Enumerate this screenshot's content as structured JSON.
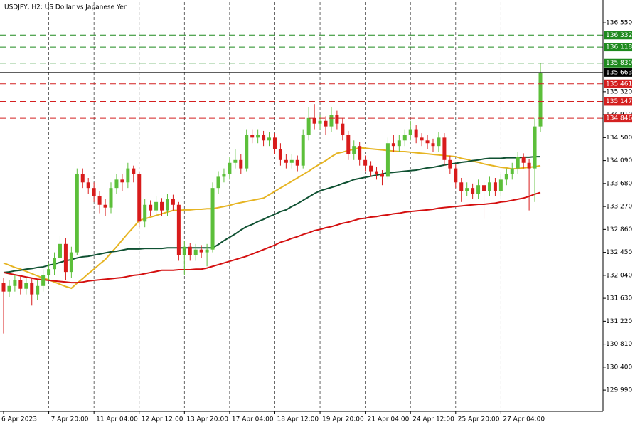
{
  "chart_data": {
    "type": "candlestick",
    "title": "USDJPY, H2:  US Dollar vs Japanese Yen",
    "categories": [
      "6 Apr 2023",
      null,
      null,
      null,
      null,
      null,
      null,
      null,
      "7 Apr 20:00",
      null,
      null,
      null,
      null,
      null,
      null,
      null,
      "11 Apr 04:00",
      null,
      null,
      null,
      null,
      null,
      null,
      null,
      "12 Apr 12:00",
      null,
      null,
      null,
      null,
      null,
      null,
      null,
      "13 Apr 20:00",
      null,
      null,
      null,
      null,
      null,
      null,
      null,
      "17 Apr 04:00",
      null,
      null,
      null,
      null,
      null,
      null,
      null,
      "18 Apr 12:00",
      null,
      null,
      null,
      null,
      null,
      null,
      null,
      "19 Apr 20:00",
      null,
      null,
      null,
      null,
      null,
      null,
      null,
      "21 Apr 04:00",
      null,
      null,
      null,
      null,
      null,
      null,
      null,
      "24 Apr 12:00",
      null,
      null,
      null,
      null,
      null,
      null,
      null,
      "25 Apr 20:00",
      null,
      null,
      null,
      null,
      null,
      null,
      null,
      "27 Apr 04:00",
      null,
      null,
      null,
      null,
      null,
      null,
      null
    ],
    "open": [
      131.9,
      131.75,
      131.85,
      131.95,
      131.8,
      131.9,
      131.7,
      131.85,
      132.05,
      132.15,
      132.35,
      132.6,
      132.1,
      132.45,
      133.85,
      133.7,
      133.6,
      133.45,
      133.3,
      133.25,
      133.6,
      133.75,
      133.7,
      133.95,
      133.85,
      133.0,
      133.3,
      133.2,
      133.35,
      133.2,
      133.4,
      133.3,
      132.4,
      132.55,
      132.4,
      132.5,
      132.45,
      132.5,
      133.6,
      133.8,
      133.85,
      134.05,
      134.1,
      133.95,
      134.55,
      134.5,
      134.55,
      134.45,
      134.5,
      134.3,
      134.1,
      134.05,
      134.1,
      134.0,
      134.55,
      134.85,
      134.75,
      134.8,
      134.7,
      134.9,
      134.75,
      134.55,
      134.2,
      134.35,
      134.1,
      134.0,
      133.9,
      133.85,
      133.8,
      134.4,
      134.35,
      134.45,
      134.55,
      134.65,
      134.5,
      134.45,
      134.4,
      134.35,
      134.5,
      134.1,
      133.95,
      133.7,
      133.55,
      133.6,
      133.5,
      133.65,
      133.55,
      133.7,
      133.55,
      133.75,
      133.85,
      133.95,
      134.15,
      134.05,
      133.95,
      134.7
    ],
    "high": [
      132.0,
      131.95,
      132.05,
      132.05,
      132.0,
      131.98,
      131.95,
      132.15,
      132.25,
      132.45,
      132.75,
      132.7,
      132.55,
      133.95,
      133.95,
      133.78,
      133.7,
      133.55,
      133.4,
      133.7,
      133.85,
      133.85,
      134.05,
      134.0,
      133.9,
      133.4,
      133.38,
      133.45,
      133.42,
      133.5,
      133.48,
      133.35,
      132.65,
      132.62,
      132.6,
      132.58,
      132.6,
      133.7,
      133.9,
      133.95,
      134.15,
      134.3,
      134.2,
      134.65,
      134.65,
      134.65,
      134.62,
      134.6,
      134.58,
      134.4,
      134.2,
      134.2,
      134.18,
      134.65,
      135.05,
      135.1,
      134.9,
      134.88,
      135.05,
      134.98,
      134.85,
      134.62,
      134.45,
      134.42,
      134.18,
      134.08,
      133.98,
      133.92,
      134.5,
      134.55,
      134.55,
      134.65,
      134.8,
      134.72,
      134.58,
      134.55,
      134.48,
      134.6,
      134.58,
      134.18,
      134.03,
      133.78,
      133.7,
      133.68,
      133.75,
      133.72,
      133.8,
      133.78,
      133.85,
      133.95,
      134.05,
      134.25,
      134.22,
      134.12,
      134.85,
      135.83
    ],
    "low": [
      131.0,
      131.65,
      131.75,
      131.7,
      131.7,
      131.5,
      131.6,
      131.75,
      131.95,
      132.05,
      132.25,
      131.95,
      132.0,
      132.4,
      133.6,
      133.5,
      133.35,
      133.15,
      133.1,
      133.15,
      133.5,
      133.55,
      133.6,
      133.7,
      132.9,
      132.9,
      133.1,
      133.1,
      133.1,
      133.1,
      133.2,
      132.3,
      132.05,
      132.3,
      132.3,
      132.35,
      132.2,
      132.45,
      133.5,
      133.7,
      133.75,
      133.95,
      133.85,
      133.9,
      134.4,
      134.4,
      134.35,
      134.35,
      134.2,
      134.0,
      133.95,
      133.95,
      133.9,
      133.95,
      134.45,
      134.65,
      134.65,
      134.55,
      134.6,
      134.65,
      134.45,
      134.1,
      134.1,
      134.0,
      133.9,
      133.8,
      133.75,
      133.65,
      133.75,
      134.25,
      134.25,
      134.35,
      134.45,
      134.4,
      134.35,
      134.3,
      134.25,
      134.25,
      134.0,
      133.85,
      133.6,
      133.35,
      133.45,
      133.4,
      133.4,
      133.05,
      133.45,
      133.45,
      133.45,
      133.65,
      133.75,
      133.85,
      133.95,
      133.2,
      133.35,
      134.6
    ],
    "close": [
      131.75,
      131.85,
      131.95,
      131.8,
      131.9,
      131.7,
      131.85,
      132.05,
      132.15,
      132.35,
      132.6,
      132.1,
      132.45,
      133.85,
      133.7,
      133.6,
      133.45,
      133.3,
      133.25,
      133.6,
      133.75,
      133.7,
      133.95,
      133.85,
      133.0,
      133.3,
      133.2,
      133.35,
      133.2,
      133.4,
      133.3,
      132.4,
      132.55,
      132.4,
      132.5,
      132.45,
      132.5,
      133.6,
      133.8,
      133.85,
      134.05,
      134.1,
      133.95,
      134.55,
      134.5,
      134.55,
      134.45,
      134.5,
      134.3,
      134.1,
      134.05,
      134.1,
      134.0,
      134.55,
      134.85,
      134.75,
      134.8,
      134.7,
      134.9,
      134.75,
      134.55,
      134.2,
      134.35,
      134.1,
      134.0,
      133.9,
      133.85,
      133.8,
      134.4,
      134.35,
      134.45,
      134.55,
      134.65,
      134.5,
      134.45,
      134.4,
      134.35,
      134.5,
      134.1,
      133.95,
      133.7,
      133.55,
      133.6,
      133.5,
      133.65,
      133.55,
      133.7,
      133.55,
      133.75,
      133.85,
      133.95,
      134.15,
      134.05,
      133.95,
      134.7,
      135.663
    ],
    "up_color": "#5cbf3a",
    "down_color": "#d81b1b",
    "moving_averages": [
      {
        "color": "#e6b422",
        "values": [
          132.26,
          132.22,
          132.18,
          132.15,
          132.11,
          132.07,
          132.03,
          131.99,
          131.96,
          131.92,
          131.88,
          131.84,
          131.81,
          131.9,
          131.98,
          132.07,
          132.15,
          132.24,
          132.32,
          132.44,
          132.55,
          132.67,
          132.79,
          132.9,
          133.02,
          133.05,
          133.08,
          133.11,
          133.14,
          133.17,
          133.2,
          133.2,
          133.21,
          133.21,
          133.22,
          133.22,
          133.23,
          133.23,
          133.25,
          133.27,
          133.29,
          133.32,
          133.34,
          133.36,
          133.38,
          133.4,
          133.42,
          133.48,
          133.54,
          133.6,
          133.66,
          133.72,
          133.78,
          133.84,
          133.9,
          133.97,
          134.03,
          134.09,
          134.16,
          134.22,
          134.24,
          134.27,
          134.29,
          134.32,
          134.31,
          134.3,
          134.29,
          134.28,
          134.27,
          134.26,
          134.25,
          134.25,
          134.24,
          134.23,
          134.22,
          134.21,
          134.2,
          134.19,
          134.18,
          134.17,
          134.16,
          134.13,
          134.11,
          134.08,
          134.06,
          134.03,
          134.01,
          133.99,
          133.97,
          133.96,
          133.94,
          133.95,
          133.96,
          133.97,
          133.98,
          134.0
        ]
      },
      {
        "color": "#0f5132",
        "values": [
          132.09,
          132.1,
          132.12,
          132.13,
          132.15,
          132.16,
          132.18,
          132.19,
          132.22,
          132.24,
          132.27,
          132.3,
          132.32,
          132.35,
          132.37,
          132.38,
          132.4,
          132.42,
          132.44,
          132.46,
          132.47,
          132.49,
          132.51,
          132.51,
          132.51,
          132.52,
          132.52,
          132.52,
          132.52,
          132.53,
          132.53,
          132.53,
          132.53,
          132.53,
          132.53,
          132.53,
          132.53,
          132.53,
          132.59,
          132.66,
          132.72,
          132.78,
          132.85,
          132.91,
          132.95,
          133.0,
          133.04,
          133.09,
          133.13,
          133.18,
          133.21,
          133.27,
          133.32,
          133.38,
          133.44,
          133.5,
          133.55,
          133.58,
          133.61,
          133.64,
          133.68,
          133.71,
          133.75,
          133.77,
          133.79,
          133.81,
          133.83,
          133.85,
          133.87,
          133.88,
          133.89,
          133.9,
          133.91,
          133.92,
          133.94,
          133.96,
          133.97,
          133.99,
          134.01,
          134.03,
          134.04,
          134.06,
          134.07,
          134.09,
          134.1,
          134.12,
          134.13,
          134.13,
          134.13,
          134.14,
          134.14,
          134.14,
          134.15,
          134.15,
          134.16,
          134.16
        ]
      },
      {
        "color": "#d40f0f",
        "values": [
          132.09,
          132.07,
          132.05,
          132.03,
          132.01,
          131.99,
          131.97,
          131.96,
          131.95,
          131.94,
          131.93,
          131.92,
          131.91,
          131.91,
          131.92,
          131.94,
          131.95,
          131.96,
          131.97,
          131.98,
          131.99,
          132.0,
          132.02,
          132.04,
          132.05,
          132.07,
          132.09,
          132.11,
          132.13,
          132.13,
          132.13,
          132.14,
          132.14,
          132.14,
          132.15,
          132.15,
          132.17,
          132.2,
          132.23,
          132.26,
          132.29,
          132.32,
          132.35,
          132.38,
          132.42,
          132.46,
          132.5,
          132.54,
          132.58,
          132.63,
          132.66,
          132.7,
          132.73,
          132.77,
          132.8,
          132.84,
          132.86,
          132.89,
          132.91,
          132.94,
          132.97,
          132.99,
          133.02,
          133.05,
          133.06,
          133.08,
          133.09,
          133.11,
          133.12,
          133.14,
          133.15,
          133.17,
          133.18,
          133.19,
          133.2,
          133.21,
          133.22,
          133.24,
          133.25,
          133.26,
          133.27,
          133.28,
          133.29,
          133.3,
          133.31,
          133.31,
          133.32,
          133.33,
          133.35,
          133.36,
          133.38,
          133.4,
          133.42,
          133.45,
          133.49,
          133.52
        ]
      }
    ],
    "levels": [
      {
        "value": 136.332,
        "label": "136.332",
        "color": "#1e8a1e",
        "style": "dashed"
      },
      {
        "value": 136.118,
        "label": "136.118",
        "color": "#1e8a1e",
        "style": "dashed"
      },
      {
        "value": 135.83,
        "label": "135.830",
        "color": "#1e8a1e",
        "style": "dashed"
      },
      {
        "value": 135.663,
        "label": "135.663",
        "color": "#000000",
        "style": "solid"
      },
      {
        "value": 135.461,
        "label": "135.461",
        "color": "#d42020",
        "style": "dashed"
      },
      {
        "value": 135.147,
        "label": "135.147",
        "color": "#d42020",
        "style": "dashed"
      },
      {
        "value": 134.846,
        "label": "134.846",
        "color": "#d42020",
        "style": "dashed"
      }
    ],
    "ylim": [
      129.61,
      136.92
    ],
    "yticks": [
      {
        "value": 129.99,
        "label": "129.990"
      },
      {
        "value": 130.4,
        "label": "130.400"
      },
      {
        "value": 130.81,
        "label": "130.810"
      },
      {
        "value": 131.22,
        "label": "131.220"
      },
      {
        "value": 131.63,
        "label": "131.630"
      },
      {
        "value": 132.04,
        "label": "132.040"
      },
      {
        "value": 132.45,
        "label": "132.450"
      },
      {
        "value": 132.86,
        "label": "132.860"
      },
      {
        "value": 133.27,
        "label": "133.270"
      },
      {
        "value": 133.68,
        "label": "133.680"
      },
      {
        "value": 134.09,
        "label": "134.090"
      },
      {
        "value": 134.5,
        "label": "134.500"
      },
      {
        "value": 134.91,
        "label": "134.910"
      },
      {
        "value": 135.32,
        "label": "135.320"
      },
      {
        "value": 136.55,
        "label": "136.550"
      }
    ],
    "grid": true
  }
}
